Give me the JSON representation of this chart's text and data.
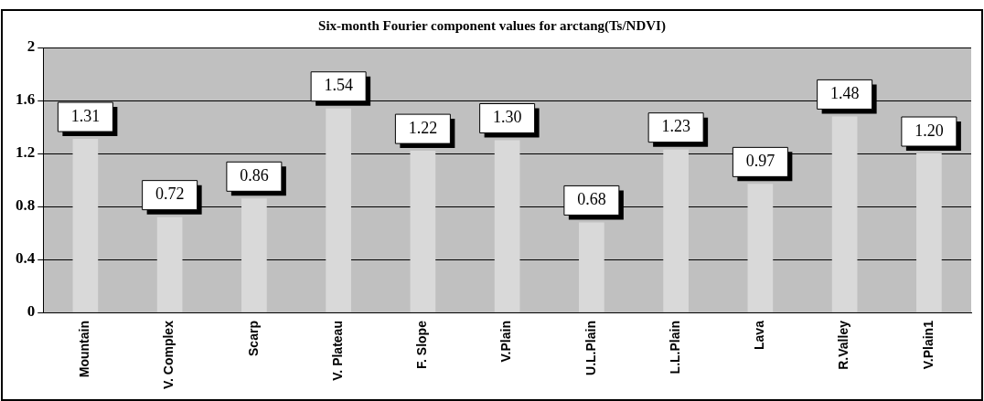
{
  "chart_data": {
    "type": "bar",
    "title": "Six-month Fourier component values for arctang(Ts/NDVI)",
    "categories": [
      "Mountain",
      "V. Complex",
      "Scarp",
      "V. Plateau",
      "F. Slope",
      "V.Plain",
      "U.L.Plain",
      "L.L.Plain",
      "Lava",
      "R.Valley",
      "V.Plain1"
    ],
    "values": [
      1.31,
      0.72,
      0.86,
      1.54,
      1.22,
      1.3,
      0.68,
      1.23,
      0.97,
      1.48,
      1.2
    ],
    "value_labels": [
      "1.31",
      "0.72",
      "0.86",
      "1.54",
      "1.22",
      "1.30",
      "0.68",
      "1.23",
      "0.97",
      "1.48",
      "1.20"
    ],
    "color": "#d9d9d9",
    "ylim": [
      0,
      2
    ],
    "yticks": [
      0,
      0.4,
      0.8,
      1.2,
      1.6,
      2
    ],
    "grid": "y",
    "legend": false
  }
}
